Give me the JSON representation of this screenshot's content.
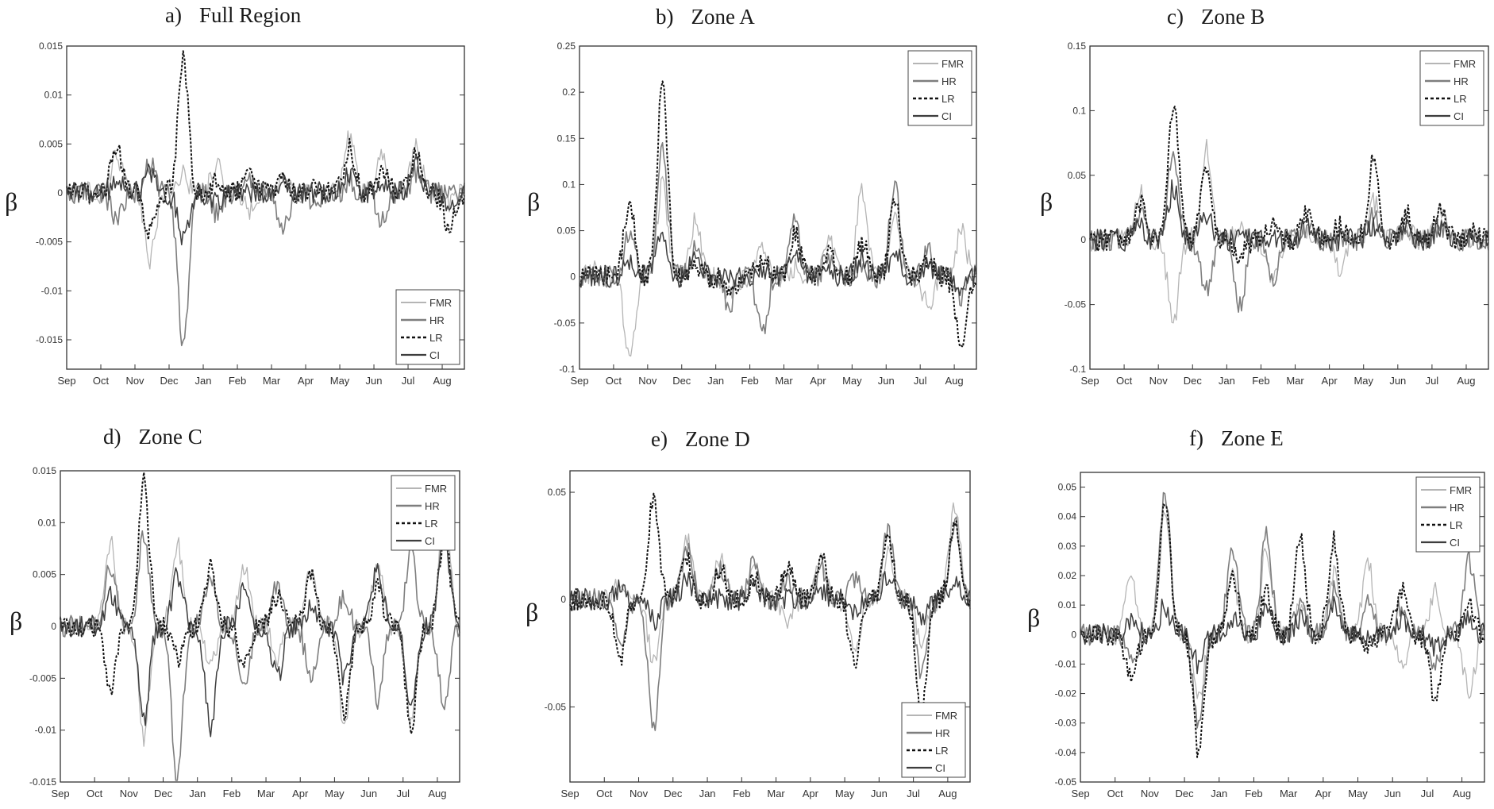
{
  "chart_data": [
    {
      "type": "line",
      "panel_label": "a)",
      "title": "Full Region",
      "ylabel": "β",
      "categories": [
        "Sep",
        "Oct",
        "Nov",
        "Dec",
        "Jan",
        "Feb",
        "Mar",
        "Apr",
        "May",
        "Jun",
        "Jul",
        "Aug"
      ],
      "ylim": [
        -0.018,
        0.015
      ],
      "yticks": [
        -0.015,
        -0.01,
        -0.005,
        0,
        0.005,
        0.01,
        0.015
      ],
      "ytick_labels": [
        "-0.015",
        "-0.01",
        "-0.005",
        "0",
        "0.005",
        "0.01",
        "0.015"
      ],
      "legend": {
        "entries": [
          "FMR",
          "HR",
          "LR",
          "CI"
        ],
        "position": "bottom-right"
      },
      "series": [
        {
          "name": "FMR",
          "values": [
            0,
            0.004,
            -0.007,
            0.002,
            0.003,
            -0.002,
            0.001,
            0,
            0.006,
            0.004,
            0.005,
            -0.001
          ]
        },
        {
          "name": "HR",
          "values": [
            0,
            -0.003,
            0.003,
            -0.016,
            -0.002,
            0.001,
            -0.004,
            -0.001,
            0.001,
            -0.003,
            0.002,
            0
          ]
        },
        {
          "name": "LR",
          "values": [
            0,
            0.005,
            -0.004,
            0.0135,
            0.001,
            0.002,
            0.001,
            0.001,
            0.005,
            0.002,
            0.004,
            -0.004
          ]
        },
        {
          "name": "CI",
          "values": [
            0,
            0.001,
            0.002,
            -0.005,
            -0.001,
            0,
            0.001,
            0,
            0.002,
            0.001,
            0.003,
            -0.001
          ]
        }
      ]
    },
    {
      "type": "line",
      "panel_label": "b)",
      "title": "Zone  A",
      "ylabel": "β",
      "categories": [
        "Sep",
        "Oct",
        "Nov",
        "Dec",
        "Jan",
        "Feb",
        "Mar",
        "Apr",
        "May",
        "Jun",
        "Jul",
        "Aug"
      ],
      "ylim": [
        -0.1,
        0.25
      ],
      "yticks": [
        -0.1,
        -0.05,
        0,
        0.05,
        0.1,
        0.15,
        0.2,
        0.25
      ],
      "ytick_labels": [
        "-0.1",
        "-0.05",
        "0",
        "0.05",
        "0.1",
        "0.15",
        "0.2",
        "0.25"
      ],
      "legend": {
        "entries": [
          "FMR",
          "HR",
          "LR",
          "CI"
        ],
        "position": "top-right"
      },
      "series": [
        {
          "name": "FMR",
          "values": [
            0.01,
            -0.09,
            0.1,
            0.06,
            -0.02,
            0.03,
            0.01,
            0.04,
            0.09,
            0.06,
            -0.03,
            0.05
          ]
        },
        {
          "name": "HR",
          "values": [
            0,
            0.05,
            0.14,
            0.03,
            -0.03,
            -0.06,
            0.06,
            0.02,
            0.01,
            0.1,
            0.03,
            -0.02
          ]
        },
        {
          "name": "LR",
          "values": [
            0,
            0.08,
            0.21,
            0.01,
            -0.02,
            0.02,
            0.05,
            0.03,
            0.04,
            0.08,
            0.02,
            -0.08
          ]
        },
        {
          "name": "CI",
          "values": [
            0,
            0.02,
            0.05,
            0.02,
            0,
            0.01,
            0.02,
            0.01,
            0.02,
            0.03,
            0.01,
            -0.01
          ]
        }
      ]
    },
    {
      "type": "line",
      "panel_label": "c)",
      "title": "Zone  B",
      "ylabel": "β",
      "categories": [
        "Sep",
        "Oct",
        "Nov",
        "Dec",
        "Jan",
        "Feb",
        "Mar",
        "Apr",
        "May",
        "Jun",
        "Jul",
        "Aug"
      ],
      "ylim": [
        -0.1,
        0.15
      ],
      "yticks": [
        -0.1,
        -0.05,
        0,
        0.05,
        0.1,
        0.15
      ],
      "ytick_labels": [
        "-0.1",
        "-0.05",
        "0",
        "0.05",
        "0.1",
        "0.15"
      ],
      "legend": {
        "entries": [
          "FMR",
          "HR",
          "LR",
          "CI"
        ],
        "position": "top-right"
      },
      "series": [
        {
          "name": "FMR",
          "values": [
            0,
            0.04,
            -0.065,
            0.07,
            0.01,
            -0.03,
            0.01,
            -0.02,
            0.03,
            0.01,
            0.02,
            0
          ]
        },
        {
          "name": "HR",
          "values": [
            0,
            0.02,
            0.07,
            -0.04,
            -0.05,
            -0.03,
            0.01,
            0,
            0.02,
            0.01,
            0.01,
            0
          ]
        },
        {
          "name": "LR",
          "values": [
            0,
            0.03,
            0.105,
            0.06,
            -0.01,
            0.01,
            0.02,
            0.01,
            0.06,
            0.02,
            0.025,
            0.005
          ]
        },
        {
          "name": "CI",
          "values": [
            0,
            0.01,
            0.04,
            0.02,
            0,
            0,
            0.01,
            0,
            0.01,
            0.01,
            0.01,
            0
          ]
        }
      ]
    },
    {
      "type": "line",
      "panel_label": "d)",
      "title": "Zone  C",
      "ylabel": "β",
      "categories": [
        "Sep",
        "Oct",
        "Nov",
        "Dec",
        "Jan",
        "Feb",
        "Mar",
        "Apr",
        "May",
        "Jun",
        "Jul",
        "Aug"
      ],
      "ylim": [
        -0.015,
        0.015
      ],
      "yticks": [
        -0.015,
        -0.01,
        -0.005,
        0,
        0.005,
        0.01,
        0.015
      ],
      "ytick_labels": [
        "-0.015",
        "-0.01",
        "-0.005",
        "0",
        "0.005",
        "0.01",
        "0.015"
      ],
      "legend": {
        "entries": [
          "FMR",
          "HR",
          "LR",
          "CI"
        ],
        "position": "top-right"
      },
      "series": [
        {
          "name": "FMR",
          "values": [
            0,
            0.008,
            -0.011,
            0.008,
            -0.004,
            0.006,
            -0.003,
            0.005,
            -0.01,
            0.006,
            -0.009,
            0.012
          ]
        },
        {
          "name": "HR",
          "values": [
            0,
            0.006,
            0.009,
            -0.015,
            0.005,
            -0.006,
            0.004,
            -0.005,
            0.003,
            -0.007,
            0.007,
            -0.008
          ]
        },
        {
          "name": "LR",
          "values": [
            0,
            -0.006,
            0.014,
            -0.003,
            0.006,
            -0.004,
            0.003,
            0.005,
            -0.009,
            0.004,
            -0.01,
            0.009
          ]
        },
        {
          "name": "CI",
          "values": [
            0,
            0.003,
            -0.009,
            0.005,
            -0.01,
            0.004,
            -0.005,
            0.002,
            -0.005,
            0.006,
            -0.008,
            0.009
          ]
        }
      ]
    },
    {
      "type": "line",
      "panel_label": "e)",
      "title": "Zone D",
      "ylabel": "β",
      "categories": [
        "Sep",
        "Oct",
        "Nov",
        "Dec",
        "Jan",
        "Feb",
        "Mar",
        "Apr",
        "May",
        "Jun",
        "Jul",
        "Aug"
      ],
      "ylim": [
        -0.085,
        0.06
      ],
      "yticks": [
        -0.05,
        0,
        0.05
      ],
      "ytick_labels": [
        "-0.05",
        "0",
        "0.05"
      ],
      "legend": {
        "entries": [
          "FMR",
          "HR",
          "LR",
          "CI"
        ],
        "position": "bottom-right"
      },
      "series": [
        {
          "name": "FMR",
          "values": [
            0,
            0.01,
            -0.03,
            0.03,
            0.02,
            0.015,
            -0.01,
            0.02,
            -0.025,
            0.02,
            -0.02,
            0.045
          ]
        },
        {
          "name": "HR",
          "values": [
            0,
            -0.02,
            -0.06,
            0.025,
            0.015,
            0.02,
            0.01,
            0.015,
            0.01,
            0.033,
            -0.035,
            0.035
          ]
        },
        {
          "name": "LR",
          "values": [
            0,
            -0.03,
            0.048,
            0.02,
            0.015,
            0.01,
            0.015,
            0.02,
            -0.03,
            0.03,
            -0.055,
            0.035
          ]
        },
        {
          "name": "CI",
          "values": [
            0,
            0.005,
            -0.01,
            0.01,
            0,
            0.005,
            0,
            0.005,
            -0.005,
            0.01,
            -0.01,
            0.01
          ]
        }
      ]
    },
    {
      "type": "line",
      "panel_label": "f)",
      "title": "Zone E",
      "ylabel": "β",
      "categories": [
        "Sep",
        "Oct",
        "Nov",
        "Dec",
        "Jan",
        "Feb",
        "Mar",
        "Apr",
        "May",
        "Jun",
        "Jul",
        "Aug"
      ],
      "ylim": [
        -0.05,
        0.055
      ],
      "yticks": [
        -0.05,
        -0.04,
        -0.03,
        -0.02,
        -0.01,
        0,
        0.01,
        0.02,
        0.03,
        0.04,
        0.05
      ],
      "ytick_labels": [
        "-0.05",
        "-0.04",
        "-0.03",
        "-0.02",
        "-0.01",
        "0",
        "0.01",
        "0.02",
        "0.03",
        "0.04",
        "0.05"
      ],
      "legend": {
        "entries": [
          "FMR",
          "HR",
          "LR",
          "CI"
        ],
        "position": "top-right"
      },
      "series": [
        {
          "name": "FMR",
          "values": [
            0,
            0.02,
            0.04,
            -0.02,
            0.02,
            0.03,
            0.01,
            0.02,
            0.025,
            -0.01,
            0.015,
            -0.02
          ]
        },
        {
          "name": "HR",
          "values": [
            0,
            -0.01,
            0.048,
            -0.03,
            0.03,
            0.033,
            0.01,
            0.015,
            0.01,
            0.01,
            -0.01,
            0.025
          ]
        },
        {
          "name": "LR",
          "values": [
            0,
            -0.015,
            0.045,
            -0.04,
            0.02,
            0.015,
            0.033,
            0.032,
            -0.005,
            0.015,
            -0.022,
            0.01
          ]
        },
        {
          "name": "CI",
          "values": [
            0,
            0.005,
            0.01,
            -0.01,
            0.005,
            0.01,
            0.005,
            0.01,
            0,
            0.005,
            -0.005,
            0.005
          ]
        }
      ]
    }
  ]
}
